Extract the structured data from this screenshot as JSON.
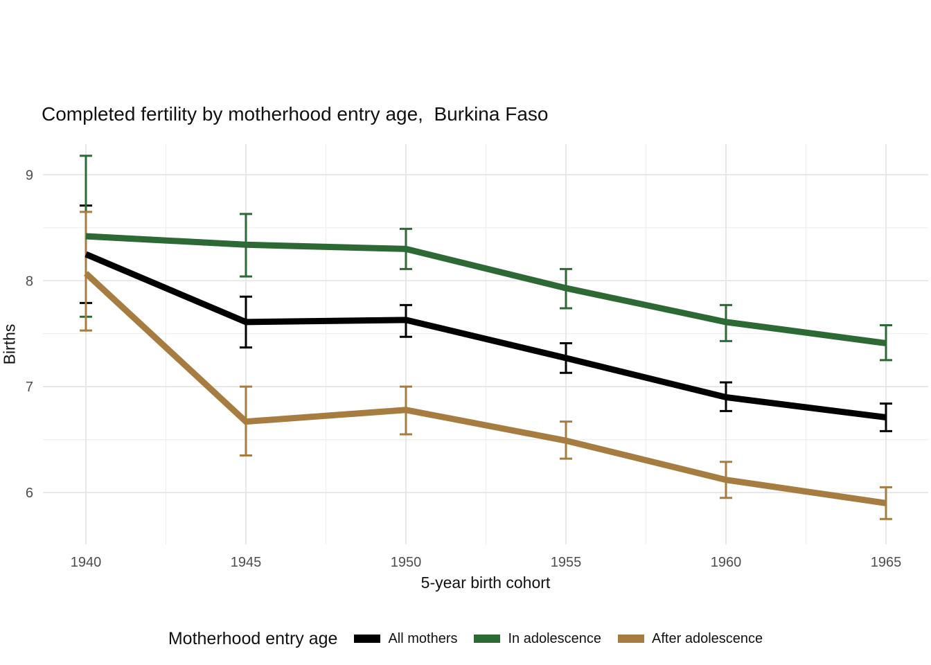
{
  "title": "Completed fertility by motherhood entry age,  Burkina Faso",
  "x_axis": {
    "label": "5-year birth cohort",
    "tick_labels": [
      "1940",
      "1945",
      "1950",
      "1955",
      "1960",
      "1965"
    ]
  },
  "y_axis": {
    "label": "Births",
    "tick_labels": [
      "9",
      "8",
      "7",
      "6"
    ]
  },
  "legend": {
    "title": "Motherhood entry age",
    "position": "bottom"
  },
  "colors": {
    "all_mothers": "#000000",
    "in_adolescence": "#2c6934",
    "after_adolescence": "#a77c40",
    "grid_major": "#e3e3e3",
    "grid_minor": "#eeeeee",
    "tick_label": "#4d4d4d",
    "background": "#ffffff"
  },
  "chart_data": {
    "type": "line",
    "title": "Completed fertility by motherhood entry age,  Burkina Faso",
    "xlabel": "5-year birth cohort",
    "ylabel": "Births",
    "x": [
      1940,
      1945,
      1950,
      1955,
      1960,
      1965
    ],
    "series": [
      {
        "name": "All mothers",
        "color": "#000000",
        "values": [
          8.25,
          7.61,
          7.63,
          7.27,
          6.9,
          6.71
        ],
        "ci_low": [
          7.79,
          7.37,
          7.47,
          7.13,
          6.77,
          6.58
        ],
        "ci_high": [
          8.71,
          7.85,
          7.77,
          7.41,
          7.04,
          6.84
        ]
      },
      {
        "name": "In adolescence",
        "color": "#2c6934",
        "values": [
          8.42,
          8.34,
          8.3,
          7.93,
          7.61,
          7.41
        ],
        "ci_low": [
          7.66,
          8.04,
          8.11,
          7.74,
          7.43,
          7.25
        ],
        "ci_high": [
          9.18,
          8.63,
          8.49,
          8.11,
          7.77,
          7.58
        ]
      },
      {
        "name": "After adolescence",
        "color": "#a77c40",
        "values": [
          8.07,
          6.67,
          6.78,
          6.49,
          6.12,
          5.9
        ],
        "ci_low": [
          7.53,
          6.35,
          6.55,
          6.32,
          5.95,
          5.75
        ],
        "ci_high": [
          8.65,
          7.0,
          7.0,
          6.67,
          6.29,
          6.05
        ]
      }
    ],
    "ylim": [
      5.51,
      9.29
    ],
    "yticks_major": [
      9,
      8,
      7,
      6
    ],
    "yticks_minor": [
      8.5,
      7.5,
      6.5
    ],
    "grid": true,
    "error_bars": true,
    "legend_position": "bottom"
  }
}
